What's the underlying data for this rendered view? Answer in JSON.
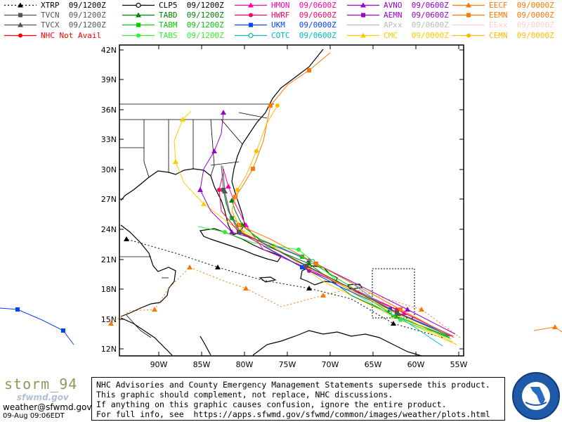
{
  "legend": {
    "items": [
      {
        "label": "XTRP  09/1200Z",
        "color": "#000000",
        "marker": "triangle",
        "dashed": true
      },
      {
        "label": "TVCN  09/1200Z",
        "color": "#555555",
        "marker": "square",
        "dashed": false
      },
      {
        "label": "TVCX  09/1200Z",
        "color": "#555555",
        "marker": "triangle",
        "dashed": false
      },
      {
        "label": "NHC Not Avail",
        "color": "#ff0000",
        "marker": "circle",
        "dashed": false
      },
      {
        "label": "CLP5  09/1200Z",
        "color": "#000000",
        "marker": "ocircle",
        "dashed": false
      },
      {
        "label": "TABD  09/1200Z",
        "color": "#008000",
        "marker": "triangle",
        "dashed": false
      },
      {
        "label": "TABM  09/1200Z",
        "color": "#00cc00",
        "marker": "square",
        "dashed": false
      },
      {
        "label": "TABS  09/1200Z",
        "color": "#33ee33",
        "marker": "circle",
        "dashed": false
      },
      {
        "label": "HMON  09/0600Z",
        "color": "#ff00aa",
        "marker": "triangle",
        "dashed": false
      },
      {
        "label": "HWRF  09/0600Z",
        "color": "#ff0066",
        "marker": "circle",
        "dashed": false
      },
      {
        "label": "UKM   09/0000Z",
        "color": "#0044ff",
        "marker": "square",
        "dashed": false
      },
      {
        "label": "COTC  09/0600Z",
        "color": "#00bbbb",
        "marker": "ocircle",
        "dashed": false
      },
      {
        "label": "AVNO  09/0600Z",
        "color": "#9900cc",
        "marker": "triangle",
        "dashed": false
      },
      {
        "label": "AEMN  09/0600Z",
        "color": "#9900cc",
        "marker": "square",
        "dashed": false
      },
      {
        "label": "APxx  09/0600Z",
        "color": "#bbbbbb",
        "marker": "none",
        "dashed": false
      },
      {
        "label": "CMC   09/0000Z",
        "color": "#ffcc00",
        "marker": "triangle",
        "dashed": false
      },
      {
        "label": "EECF  09/0000Z",
        "color": "#ff7700",
        "marker": "triangle",
        "dashed": false
      },
      {
        "label": "EEMN  09/0000Z",
        "color": "#ff7700",
        "marker": "square",
        "dashed": false
      },
      {
        "label": "EExx  09/0000Z",
        "color": "#ffd0d0",
        "marker": "none",
        "dashed": false
      },
      {
        "label": "CEMN  09/0000Z",
        "color": "#ffbb00",
        "marker": "circle",
        "dashed": false
      }
    ]
  },
  "axes": {
    "lat_labels": [
      "42N",
      "39N",
      "36N",
      "33N",
      "30N",
      "27N",
      "24N",
      "21N",
      "18N",
      "15N",
      "12N"
    ],
    "lon_labels": [
      "90W",
      "85W",
      "80W",
      "75W",
      "70W",
      "65W",
      "60W",
      "55W"
    ]
  },
  "brand": {
    "name": "storm_94",
    "sub": "sfwmd.gov",
    "email": "weather@sfwmd.gov",
    "datetime": "09-Aug 09:06EDT"
  },
  "disclaimer": {
    "lines": [
      "NHC Advisories and County Emergency Management Statements supersede this product.",
      "This graphic should complement, not replace, NHC discussions.",
      "If anything on this graphic causes confusion, ignore the entire product.",
      "For full info, see  https://apps.sfwmd.gov/sfwmd/common/images/weather/plots.html"
    ]
  },
  "seal": {
    "text": "SOUTH FLORIDA WATER MANAGEMENT DISTRICT"
  },
  "colors": {
    "land_outline": "#000000",
    "background": "#ffffff"
  }
}
